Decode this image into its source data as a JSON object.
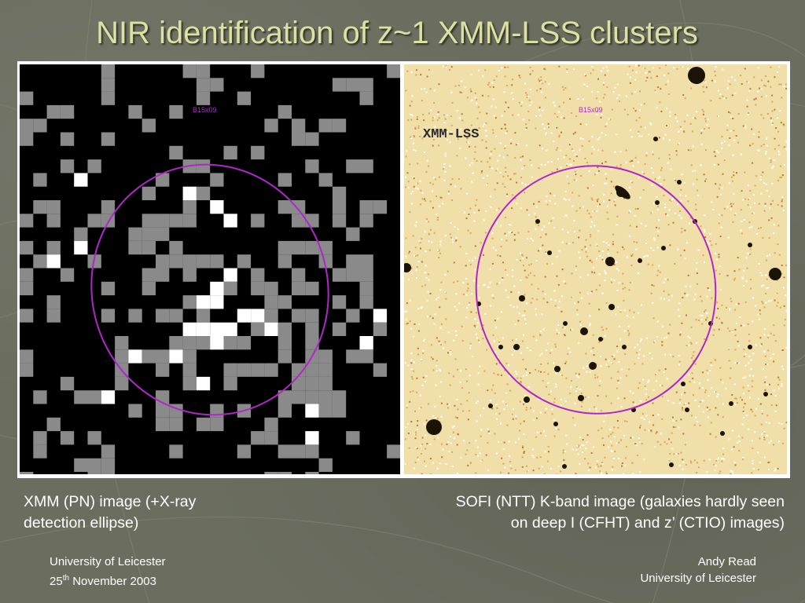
{
  "slide": {
    "title": "NIR identification of z~1 XMM-LSS clusters"
  },
  "figure": {
    "xmm_label": "B15x09",
    "sofi_label": "B15x09",
    "sofi_watermark": "XMM-LSS",
    "ellipse_color": "#b026c9"
  },
  "captions": {
    "left_line1": "XMM (PN) image (+X-ray",
    "left_line2": "detection ellipse)",
    "right_line1": "SOFI (NTT) K-band image (galaxies hardly seen",
    "right_line2": "on deep I (CFHT) and z’ (CTIO) images)"
  },
  "footer": {
    "left_line1": "University of Leicester",
    "left_date_day": "25",
    "left_date_sup": "th",
    "left_date_rest": " November 2003",
    "right_line1": "Andy Read",
    "right_line2": "University of Leicester"
  },
  "colors": {
    "title": "#dbe0a3",
    "background": "#6b6e5f",
    "text": "#ffffff"
  }
}
